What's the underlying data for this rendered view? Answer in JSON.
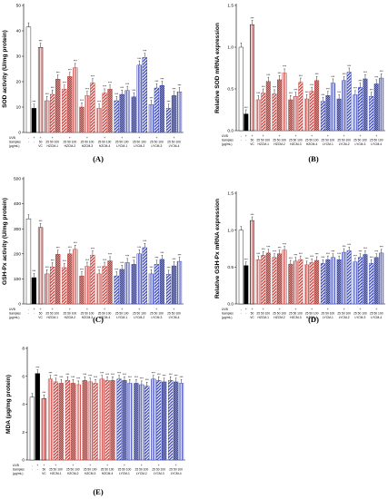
{
  "groups": [
    "VC",
    "HZCM-1",
    "HZCM-2",
    "HZCM-3",
    "HZCM-4",
    "LYCM-1",
    "LYCM-2",
    "LYCM-3",
    "LYCM-4"
  ],
  "row_labels": {
    "uvb": "UVB",
    "samples": "Samples",
    "unit": "(μg/mL)"
  },
  "uvb_marks": [
    "-",
    "+",
    "+",
    "+",
    "+",
    "+",
    "+",
    "+",
    "+",
    "+",
    "+"
  ],
  "sample_marks": [
    "-",
    "-"
  ],
  "conc_vc": "50",
  "conc_sample": "25 50 100",
  "colors": {
    "VC": "#000000",
    "HZCM": "#c4302b",
    "LYCM": "#2b39b0"
  },
  "chart_data": [
    {
      "type": "bar",
      "panel": "(A)",
      "ylabel": "SOD activity (U/mg protein)",
      "ylim": [
        0,
        50
      ],
      "yticks": [
        0,
        10,
        20,
        30,
        40,
        50
      ],
      "control": 41.5,
      "uvb": 9.5,
      "vc": 33.5,
      "series": [
        {
          "name": "HZCM-1",
          "values": [
            12.5,
            15.0,
            21.0
          ]
        },
        {
          "name": "HZCM-2",
          "values": [
            17.0,
            22.0,
            25.5
          ]
        },
        {
          "name": "HZCM-3",
          "values": [
            10.0,
            14.5,
            19.5
          ]
        },
        {
          "name": "HZCM-4",
          "values": [
            9.5,
            15.5,
            17.0
          ]
        },
        {
          "name": "LYCM-1",
          "values": [
            12.5,
            15.0,
            16.5
          ]
        },
        {
          "name": "LYCM-2",
          "values": [
            14.0,
            26.5,
            29.5
          ]
        },
        {
          "name": "LYCM-3",
          "values": [
            11.0,
            17.5,
            18.5
          ]
        },
        {
          "name": "LYCM-4",
          "values": [
            9.5,
            14.5,
            16.0
          ]
        }
      ]
    },
    {
      "type": "bar",
      "panel": "(B)",
      "ylabel": "Relative SOD mRNA expression",
      "ylim": [
        0,
        1.5
      ],
      "yticks": [
        0.0,
        0.5,
        1.0,
        1.5
      ],
      "control": 1.0,
      "uvb": 0.2,
      "vc": 1.27,
      "series": [
        {
          "name": "HZCM-1",
          "values": [
            0.37,
            0.45,
            0.59
          ]
        },
        {
          "name": "HZCM-2",
          "values": [
            0.44,
            0.61,
            0.69
          ]
        },
        {
          "name": "HZCM-3",
          "values": [
            0.37,
            0.41,
            0.58
          ]
        },
        {
          "name": "HZCM-4",
          "values": [
            0.38,
            0.47,
            0.6
          ]
        },
        {
          "name": "LYCM-1",
          "values": [
            0.35,
            0.42,
            0.57
          ]
        },
        {
          "name": "LYCM-2",
          "values": [
            0.38,
            0.6,
            0.7
          ]
        },
        {
          "name": "LYCM-3",
          "values": [
            0.43,
            0.52,
            0.62
          ]
        },
        {
          "name": "LYCM-4",
          "values": [
            0.41,
            0.56,
            0.63
          ]
        }
      ]
    },
    {
      "type": "bar",
      "panel": "(C)",
      "ylabel": "GSH-Px activity (U/mg protein)",
      "ylim": [
        0,
        500
      ],
      "yticks": [
        0,
        100,
        200,
        300,
        400,
        500
      ],
      "control": 340,
      "uvb": 105,
      "vc": 305,
      "series": [
        {
          "name": "HZCM-1",
          "values": [
            120,
            148,
            198
          ]
        },
        {
          "name": "HZCM-2",
          "values": [
            145,
            200,
            218
          ]
        },
        {
          "name": "HZCM-3",
          "values": [
            112,
            150,
            195
          ]
        },
        {
          "name": "HZCM-4",
          "values": [
            120,
            150,
            172
          ]
        },
        {
          "name": "LYCM-1",
          "values": [
            112,
            138,
            165
          ]
        },
        {
          "name": "LYCM-2",
          "values": [
            158,
            200,
            225
          ]
        },
        {
          "name": "LYCM-3",
          "values": [
            120,
            158,
            178
          ]
        },
        {
          "name": "LYCM-4",
          "values": [
            118,
            152,
            170
          ]
        }
      ]
    },
    {
      "type": "bar",
      "panel": "(D)",
      "ylabel": "Relative GSH-Px mRNA expression",
      "ylim": [
        0,
        1.5
      ],
      "yticks": [
        0.0,
        0.5,
        1.0,
        1.5
      ],
      "control": 1.0,
      "uvb": 0.52,
      "vc": 1.13,
      "series": [
        {
          "name": "HZCM-1",
          "values": [
            0.6,
            0.66,
            0.69
          ]
        },
        {
          "name": "HZCM-2",
          "values": [
            0.63,
            0.68,
            0.73
          ]
        },
        {
          "name": "HZCM-3",
          "values": [
            0.54,
            0.58,
            0.6
          ]
        },
        {
          "name": "HZCM-4",
          "values": [
            0.53,
            0.56,
            0.59
          ]
        },
        {
          "name": "LYCM-1",
          "values": [
            0.55,
            0.6,
            0.63
          ]
        },
        {
          "name": "LYCM-2",
          "values": [
            0.6,
            0.7,
            0.72
          ]
        },
        {
          "name": "LYCM-3",
          "values": [
            0.57,
            0.63,
            0.67
          ]
        },
        {
          "name": "LYCM-4",
          "values": [
            0.55,
            0.63,
            0.69
          ]
        }
      ]
    },
    {
      "type": "bar",
      "panel": "(E)",
      "ylabel": "MDA (μg/mg protein)",
      "ylim": [
        0,
        8
      ],
      "yticks": [
        0,
        2,
        4,
        6,
        8
      ],
      "control": 4.5,
      "uvb": 6.2,
      "vc": 4.4,
      "series": [
        {
          "name": "HZCM-1",
          "values": [
            5.8,
            5.6,
            5.5
          ]
        },
        {
          "name": "HZCM-2",
          "values": [
            5.7,
            5.5,
            5.4
          ]
        },
        {
          "name": "HZCM-3",
          "values": [
            5.7,
            5.6,
            5.5
          ]
        },
        {
          "name": "HZCM-4",
          "values": [
            5.8,
            5.7,
            5.7
          ]
        },
        {
          "name": "LYCM-1",
          "values": [
            5.8,
            5.7,
            5.5
          ]
        },
        {
          "name": "LYCM-2",
          "values": [
            5.5,
            5.4,
            5.3
          ]
        },
        {
          "name": "LYCM-3",
          "values": [
            5.8,
            5.7,
            5.6
          ]
        },
        {
          "name": "LYCM-4",
          "values": [
            5.7,
            5.6,
            5.5
          ]
        }
      ]
    }
  ]
}
